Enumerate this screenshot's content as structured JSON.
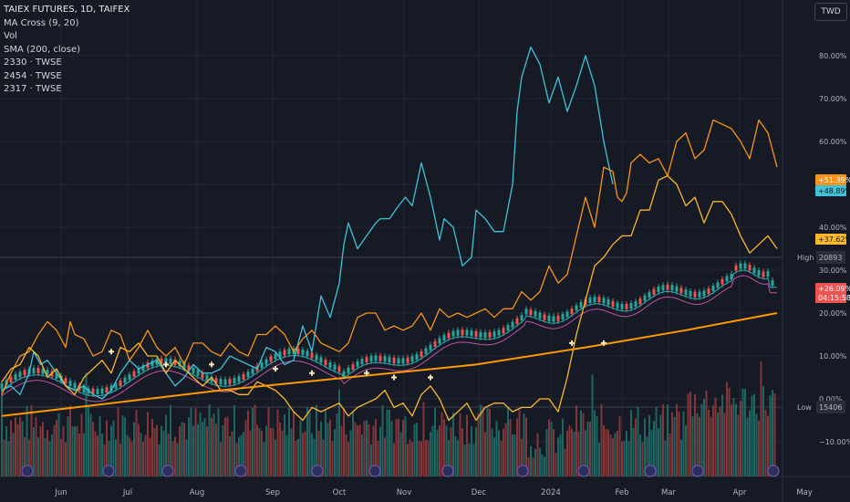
{
  "header": {
    "legend": [
      "TAIEX FUTURES, 1D, TAIFEX",
      "MA Cross (9, 20)",
      "Vol",
      "SMA (200, close)",
      "2330 · TWSE",
      "2454 · TWSE",
      "2317 · TWSE"
    ],
    "currency": "TWD"
  },
  "colors": {
    "background": "#161a25",
    "grid": "#222631",
    "teal": "#3fc3d8",
    "orange": "#f7931a",
    "amber": "#fbb72c",
    "sma": "#ff9900",
    "up": "#26a69a",
    "down": "#ef5350"
  },
  "chart_data": {
    "type": "line",
    "y_axis": {
      "ticks": [
        80,
        70,
        60,
        50,
        40,
        30,
        20,
        10,
        0,
        -10
      ],
      "tick_labels": [
        "80.00%",
        "70.00%",
        "60.00%",
        "",
        "40.00%",
        "30.00%",
        "20.00%",
        "10.00%",
        "0.00%",
        "−10.00%"
      ],
      "ylim": [
        -13.5,
        89
      ]
    },
    "x_axis": {
      "labels": [
        "Jun",
        "Jul",
        "Aug",
        "Sep",
        "Oct",
        "Nov",
        "Dec",
        "2024",
        "Feb",
        "Mar",
        "Apr",
        "May"
      ]
    },
    "grid": true,
    "series": [
      {
        "key": "teal",
        "x": [
          0,
          4,
          8,
          12,
          14,
          17,
          20,
          24,
          28,
          32,
          36,
          40,
          44,
          48,
          52,
          56,
          60,
          64,
          68,
          72,
          76,
          80,
          84,
          88,
          92,
          96,
          100,
          104,
          108,
          112,
          116,
          120,
          124,
          128,
          132,
          136,
          140,
          144,
          148,
          150,
          152,
          156,
          160,
          164,
          166,
          170,
          174,
          177,
          180,
          184,
          188,
          192,
          194,
          198,
          202,
          206,
          208,
          212,
          216,
          220,
          224,
          226
        ],
        "y": [
          2,
          3,
          1,
          6,
          11,
          8,
          9,
          6,
          3,
          2,
          3,
          1,
          0,
          2,
          6,
          9,
          7,
          8,
          9,
          6,
          3,
          5,
          8,
          6,
          6,
          7,
          10,
          9,
          8,
          7,
          12,
          11,
          8,
          9,
          17,
          11,
          24,
          19,
          27,
          36,
          41,
          35,
          38,
          41,
          42,
          42,
          45,
          47,
          45,
          55,
          47,
          37,
          42,
          40,
          31,
          33,
          44,
          42,
          39,
          39,
          50,
          67
        ],
        "x_tail": [
          228,
          232,
          236,
          240,
          244,
          248,
          252,
          256,
          260,
          264,
          268
        ],
        "y_tail": [
          75,
          82,
          78,
          69,
          75,
          67,
          73,
          80,
          73,
          60,
          50
        ]
      },
      {
        "key": "orange",
        "x": [
          0,
          4,
          8,
          12,
          16,
          20,
          24,
          28,
          30,
          32,
          36,
          40,
          44,
          48,
          52,
          56,
          60,
          64,
          68,
          72,
          76,
          80,
          84,
          88,
          92,
          96,
          100,
          104,
          108,
          112,
          116,
          120,
          124,
          128,
          132,
          136,
          140,
          144,
          148,
          152,
          156,
          160,
          164,
          168,
          172,
          176,
          180,
          184,
          188,
          192,
          196,
          200,
          204,
          208,
          212,
          216,
          220,
          224,
          228,
          232,
          236,
          240,
          244,
          248,
          252,
          256,
          260,
          264,
          268
        ],
        "y": [
          1,
          6,
          10,
          11,
          15,
          18,
          16,
          12,
          18,
          15,
          14,
          10,
          11,
          16,
          15,
          9,
          12,
          16,
          12,
          10,
          12,
          8,
          13,
          13,
          11,
          10,
          13,
          11,
          10,
          15,
          15,
          17,
          15,
          11,
          14,
          16,
          13,
          12,
          11,
          13,
          19,
          20,
          20,
          16,
          17,
          16,
          17,
          20,
          16,
          21,
          19,
          20,
          19,
          20,
          21,
          19,
          21,
          21,
          25,
          23,
          25,
          31,
          27,
          29,
          38,
          47,
          40,
          54,
          53
        ],
        "x_tail": [
          270,
          272,
          274,
          276,
          280,
          284,
          288,
          292,
          296,
          300,
          304,
          308,
          312,
          316,
          320,
          324,
          328,
          332,
          336,
          340
        ],
        "y_tail": [
          47,
          46,
          48,
          55,
          57,
          55,
          56,
          52,
          60,
          62,
          56,
          58,
          65,
          64,
          63,
          60,
          56,
          65,
          62,
          54
        ]
      },
      {
        "key": "amber",
        "x": [
          0,
          4,
          8,
          12,
          16,
          20,
          24,
          28,
          32,
          36,
          40,
          44,
          48,
          52,
          56,
          60,
          64,
          68,
          72,
          76,
          80,
          84,
          88,
          92,
          96,
          100,
          104,
          108,
          112,
          116,
          120,
          124,
          128,
          132,
          136,
          140,
          144,
          148,
          152,
          156,
          160,
          164,
          168,
          172,
          176,
          180,
          184,
          188,
          192,
          196,
          200,
          204,
          208,
          212,
          216,
          220,
          224,
          228,
          232,
          236,
          240,
          244,
          248,
          252,
          256,
          260,
          264,
          268,
          272,
          276,
          280,
          284,
          288,
          292,
          296,
          300,
          304,
          308,
          312,
          316,
          320,
          324,
          328,
          332,
          336,
          340
        ],
        "y": [
          4,
          7,
          8,
          12,
          10,
          5,
          7,
          3,
          1,
          5,
          7,
          9,
          6,
          12,
          11,
          13,
          10,
          10,
          6,
          9,
          7,
          5,
          3,
          5,
          2,
          2,
          1,
          1,
          4,
          3,
          2,
          0,
          -3,
          -5,
          -2,
          -3,
          -2,
          -1,
          -4,
          -2,
          -1,
          0,
          2,
          -2,
          -1,
          -4,
          1,
          3,
          0,
          -5,
          -3,
          -1,
          -5,
          -2,
          -1,
          -1,
          -3,
          -2,
          -2,
          0,
          0,
          -3,
          5,
          15,
          23,
          31,
          33,
          36,
          38,
          38,
          44,
          44,
          51,
          52,
          50,
          45,
          47,
          41,
          46,
          46,
          43,
          38,
          34,
          36,
          38,
          35
        ],
        "x_tail": [],
        "y_tail": []
      },
      {
        "key": "sma",
        "x": [
          0,
          48,
          96,
          152,
          208,
          256,
          300,
          340
        ],
        "y": [
          -4,
          -1,
          2,
          5,
          8,
          12,
          16,
          20
        ],
        "x_tail": [],
        "y_tail": []
      }
    ],
    "price": {
      "high_label": "High",
      "high_value": "20893",
      "low_label": "Low",
      "low_value": "15406"
    },
    "badges": [
      {
        "text": "+51.39%",
        "y": 51.39,
        "color": "#f7931a",
        "text_color": "#ffffff"
      },
      {
        "text": "+48.89%",
        "y": 48.89,
        "color": "#3fc3d8",
        "text_color": "#0e1a22"
      },
      {
        "text": "+37.62%",
        "y": 37.62,
        "color": "#fbb72c",
        "text_color": "#0e1a22"
      },
      {
        "text": "+26.09%",
        "y": 26.09,
        "color": "#ef5350",
        "text_color": "#ffffff"
      },
      {
        "text": "04:15:58",
        "y": 23.3,
        "color": "#ef5350",
        "text_color": "#ffffff"
      }
    ]
  }
}
